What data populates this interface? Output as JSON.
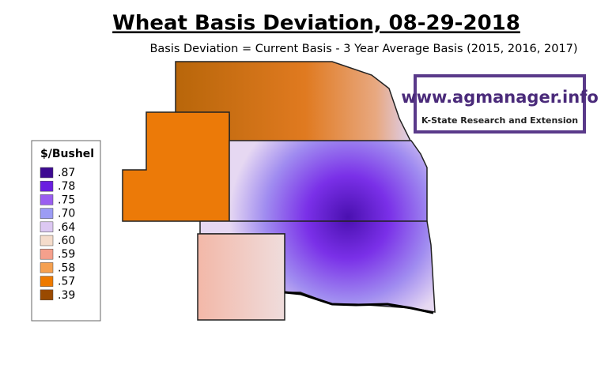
{
  "title": "Wheat Basis Deviation, 08-29-2018",
  "subtitle": "Basis Deviation = Current Basis - 3 Year Average Basis (2015, 2016, 2017)",
  "logo": {
    "url": "www.agmanager.info",
    "org": "K-State Research and Extension"
  },
  "legend": {
    "title": "$/Bushel",
    "items": [
      {
        "label": ".87",
        "color": "#3d0a91"
      },
      {
        "label": ".78",
        "color": "#6a1ee0"
      },
      {
        "label": ".75",
        "color": "#9a5ef0"
      },
      {
        "label": ".70",
        "color": "#9c9cf5"
      },
      {
        "label": ".64",
        "color": "#dcc8f2"
      },
      {
        "label": ".60",
        "color": "#f5dccb"
      },
      {
        "label": ".59",
        "color": "#f5a08c"
      },
      {
        "label": ".58",
        "color": "#f5a050"
      },
      {
        "label": ".57",
        "color": "#ee7a00"
      },
      {
        "label": ".39",
        "color": "#9a4a00"
      }
    ]
  }
}
